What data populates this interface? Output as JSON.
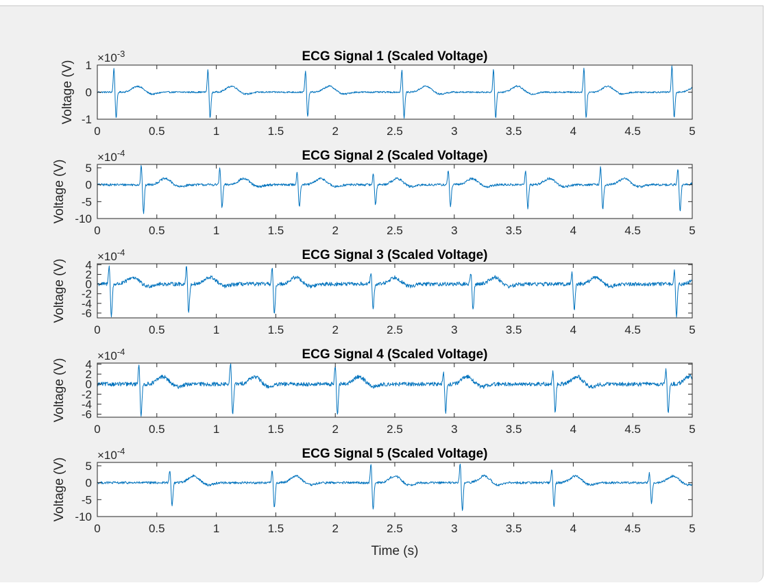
{
  "colors": {
    "line": "#0072bd",
    "axes": "#262626",
    "plot_bg": "#ffffff",
    "figure_bg": "#f0f0f0"
  },
  "chart_data": [
    {
      "type": "line",
      "title": "ECG Signal 1 (Scaled Voltage)",
      "ylabel": "Voltage (V)",
      "xlabel": "",
      "exponent_base": "×10",
      "exponent_power": "-3",
      "xlim": [
        0,
        5
      ],
      "ylim": [
        -1,
        1
      ],
      "xticks": [
        0,
        0.5,
        1,
        1.5,
        2,
        2.5,
        3,
        3.5,
        4,
        4.5,
        5
      ],
      "xtick_labels": [
        "0",
        "0.5",
        "1",
        "1.5",
        "2",
        "2.5",
        "3",
        "3.5",
        "4",
        "4.5",
        "5"
      ],
      "yticks": [
        -1,
        0,
        1
      ],
      "ytick_labels": [
        "-1",
        "0",
        "1"
      ],
      "beats": [
        {
          "t": 0.14,
          "r": 0.92,
          "s": -0.95
        },
        {
          "t": 0.93,
          "r": 0.85,
          "s": -0.95
        },
        {
          "t": 1.75,
          "r": 0.8,
          "s": -0.9
        },
        {
          "t": 2.56,
          "r": 0.85,
          "s": -0.95
        },
        {
          "t": 3.33,
          "r": 0.85,
          "s": -0.95
        },
        {
          "t": 4.09,
          "r": 0.95,
          "s": -0.95
        },
        {
          "t": 4.83,
          "r": 1.0,
          "s": -0.95
        }
      ],
      "t_wave": 0.22,
      "noise": 0.03
    },
    {
      "type": "line",
      "title": "ECG Signal 2 (Scaled Voltage)",
      "ylabel": "Voltage (V)",
      "xlabel": "",
      "exponent_base": "×10",
      "exponent_power": "-4",
      "xlim": [
        0,
        5
      ],
      "ylim": [
        -10,
        6
      ],
      "xticks": [
        0,
        0.5,
        1,
        1.5,
        2,
        2.5,
        3,
        3.5,
        4,
        4.5,
        5
      ],
      "xtick_labels": [
        "0",
        "0.5",
        "1",
        "1.5",
        "2",
        "2.5",
        "3",
        "3.5",
        "4",
        "4.5",
        "5"
      ],
      "yticks": [
        -10,
        -5,
        0,
        5
      ],
      "ytick_labels": [
        "-10",
        "-5",
        "0",
        "5"
      ],
      "beats": [
        {
          "t": 0.37,
          "r": 6.0,
          "s": -8.5
        },
        {
          "t": 1.03,
          "r": 5.0,
          "s": -6.8
        },
        {
          "t": 1.68,
          "r": 4.0,
          "s": -6.5
        },
        {
          "t": 2.32,
          "r": 3.5,
          "s": -6.0
        },
        {
          "t": 2.95,
          "r": 4.5,
          "s": -6.5
        },
        {
          "t": 3.6,
          "r": 4.5,
          "s": -7.0
        },
        {
          "t": 4.23,
          "r": 5.5,
          "s": -7.5
        },
        {
          "t": 4.88,
          "r": 5.0,
          "s": -8.0
        }
      ],
      "t_wave": 1.8,
      "noise": 0.35
    },
    {
      "type": "line",
      "title": "ECG Signal 3 (Scaled Voltage)",
      "ylabel": "Voltage (V)",
      "xlabel": "",
      "exponent_base": "×10",
      "exponent_power": "-4",
      "xlim": [
        0,
        5
      ],
      "ylim": [
        -7,
        4.2
      ],
      "xticks": [
        0,
        0.5,
        1,
        1.5,
        2,
        2.5,
        3,
        3.5,
        4,
        4.5,
        5
      ],
      "xtick_labels": [
        "0",
        "0.5",
        "1",
        "1.5",
        "2",
        "2.5",
        "3",
        "3.5",
        "4",
        "4.5",
        "5"
      ],
      "yticks": [
        -6,
        -4,
        -2,
        0,
        2,
        4
      ],
      "ytick_labels": [
        "-6",
        "-4",
        "-2",
        "0",
        "2",
        "4"
      ],
      "beats": [
        {
          "t": 0.1,
          "r": 4.2,
          "s": -6.9
        },
        {
          "t": 0.75,
          "r": 4.0,
          "s": -6.0
        },
        {
          "t": 1.47,
          "r": 3.5,
          "s": -6.5
        },
        {
          "t": 2.3,
          "r": 2.5,
          "s": -5.5
        },
        {
          "t": 3.14,
          "r": 2.5,
          "s": -5.5
        },
        {
          "t": 3.99,
          "r": 2.5,
          "s": -5.5
        },
        {
          "t": 4.85,
          "r": 3.0,
          "s": -6.5
        }
      ],
      "t_wave": 1.4,
      "noise": 0.4
    },
    {
      "type": "line",
      "title": "ECG Signal 4 (Scaled Voltage)",
      "ylabel": "Voltage (V)",
      "xlabel": "",
      "exponent_base": "×10",
      "exponent_power": "-4",
      "xlim": [
        0,
        5
      ],
      "ylim": [
        -6.6,
        4.2
      ],
      "xticks": [
        0,
        0.5,
        1,
        1.5,
        2,
        2.5,
        3,
        3.5,
        4,
        4.5,
        5
      ],
      "xtick_labels": [
        "0",
        "0.5",
        "1",
        "1.5",
        "2",
        "2.5",
        "3",
        "3.5",
        "4",
        "4.5",
        "5"
      ],
      "yticks": [
        -6,
        -4,
        -2,
        0,
        2,
        4
      ],
      "ytick_labels": [
        "-6",
        "-4",
        "-2",
        "0",
        "2",
        "4"
      ],
      "beats": [
        {
          "t": 0.35,
          "r": 4.2,
          "s": -6.5
        },
        {
          "t": 1.12,
          "r": 4.2,
          "s": -6.0
        },
        {
          "t": 2.0,
          "r": 4.0,
          "s": -6.0
        },
        {
          "t": 2.91,
          "r": 2.5,
          "s": -5.5
        },
        {
          "t": 3.83,
          "r": 2.5,
          "s": -5.5
        },
        {
          "t": 4.78,
          "r": 3.0,
          "s": -6.0
        }
      ],
      "t_wave": 1.5,
      "noise": 0.4
    },
    {
      "type": "line",
      "title": "ECG Signal 5 (Scaled Voltage)",
      "ylabel": "Voltage (V)",
      "xlabel": "Time (s)",
      "exponent_base": "×10",
      "exponent_power": "-4",
      "xlim": [
        0,
        5
      ],
      "ylim": [
        -10,
        6
      ],
      "xticks": [
        0,
        0.5,
        1,
        1.5,
        2,
        2.5,
        3,
        3.5,
        4,
        4.5,
        5
      ],
      "xtick_labels": [
        "0",
        "0.5",
        "1",
        "1.5",
        "2",
        "2.5",
        "3",
        "3.5",
        "4",
        "4.5",
        "5"
      ],
      "yticks": [
        -10,
        -5,
        0,
        5
      ],
      "ytick_labels": [
        "-10",
        "-5",
        "0",
        "5"
      ],
      "beats": [
        {
          "t": 0.61,
          "r": 4.0,
          "s": -7.0
        },
        {
          "t": 1.47,
          "r": 4.0,
          "s": -7.5
        },
        {
          "t": 2.3,
          "r": 6.0,
          "s": -8.0
        },
        {
          "t": 3.05,
          "r": 6.0,
          "s": -8.5
        },
        {
          "t": 3.82,
          "r": 4.5,
          "s": -7.0
        },
        {
          "t": 4.64,
          "r": 3.0,
          "s": -6.0
        }
      ],
      "t_wave": 2.0,
      "noise": 0.35
    }
  ]
}
